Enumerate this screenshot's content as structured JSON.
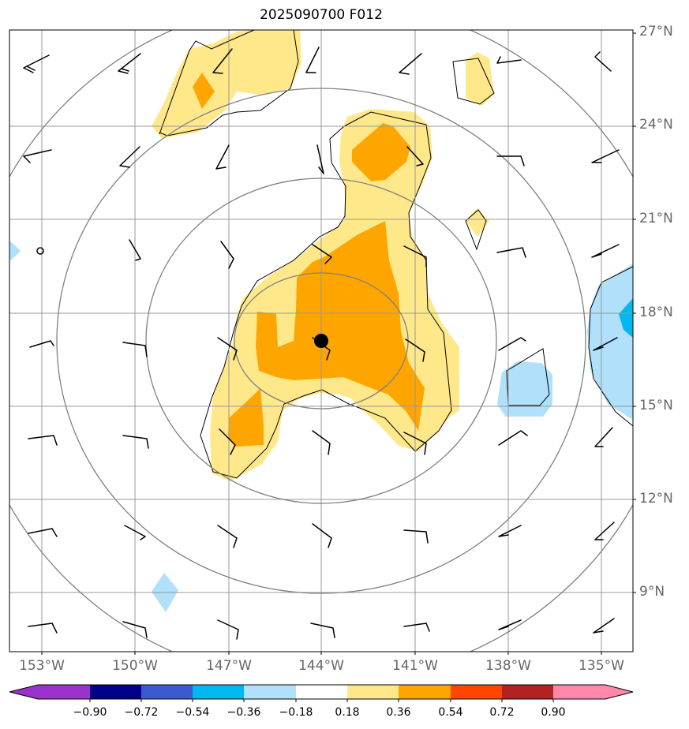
{
  "title": "2025090700 F012",
  "map": {
    "lon_range": [
      -154,
      -134
    ],
    "lat_range": [
      7.5,
      27
    ],
    "center": {
      "lon": -144,
      "lat": 17
    },
    "range_rings_deg": [
      3,
      6,
      9,
      12
    ],
    "lat_ticks": [
      {
        "value": 27,
        "label": "27°N"
      },
      {
        "value": 24,
        "label": "24°N"
      },
      {
        "value": 21,
        "label": "21°N"
      },
      {
        "value": 18,
        "label": "18°N"
      },
      {
        "value": 15,
        "label": "15°N"
      },
      {
        "value": 12,
        "label": "12°N"
      },
      {
        "value": 9,
        "label": "9°N"
      }
    ],
    "lon_ticks": [
      {
        "value": -153,
        "label": "153°W"
      },
      {
        "value": -150,
        "label": "150°W"
      },
      {
        "value": -147,
        "label": "147°W"
      },
      {
        "value": -144,
        "label": "144°W"
      },
      {
        "value": -141,
        "label": "141°W"
      },
      {
        "value": -138,
        "label": "138°W"
      },
      {
        "value": -135,
        "label": "135°W"
      }
    ]
  },
  "colorbar": {
    "labels": [
      "−0.90",
      "−0.72",
      "−0.54",
      "−0.36",
      "−0.18",
      "0.18",
      "0.36",
      "0.54",
      "0.72",
      "0.90"
    ],
    "colors": {
      "under": "#9933cc",
      "bins": [
        "#9933cc",
        "#000088",
        "#3a5bd0",
        "#00b8f0",
        "#b0e0fa",
        "#ffffff",
        "#ffe88a",
        "#ffa500",
        "#ff4500",
        "#b22222",
        "#ff88aa"
      ],
      "over": "#ff88aa"
    }
  },
  "colors": {
    "light_yellow": "#ffe88a",
    "orange": "#ffa500",
    "light_blue": "#b0e0fa",
    "blue": "#00b8f0",
    "grid": "#999999",
    "rings": "#808080"
  }
}
